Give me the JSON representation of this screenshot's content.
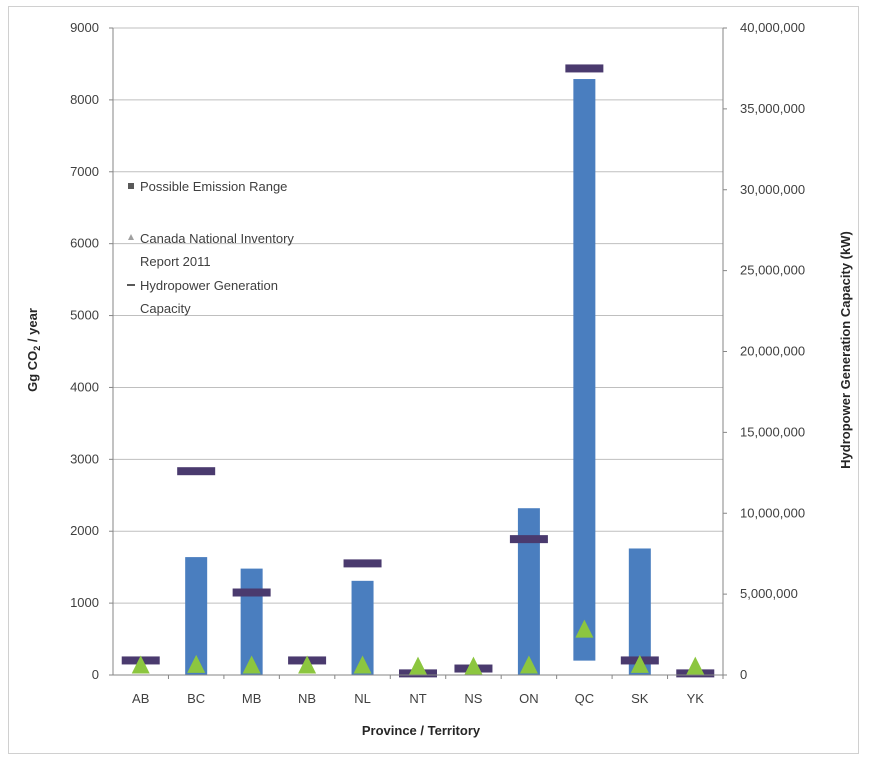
{
  "chart_data": {
    "type": "bar",
    "categories": [
      "AB",
      "BC",
      "MB",
      "NB",
      "NL",
      "NT",
      "NS",
      "ON",
      "QC",
      "SK",
      "YK"
    ],
    "xlabel": "Province / Territory",
    "ylabel_main": "Gg CO",
    "ylabel_sub": "2",
    "ylabel_tail": " / year",
    "y2label": "Hydropower Generation Capacity (kW)",
    "ylim": [
      0,
      9000
    ],
    "y_ticks": [
      0,
      1000,
      2000,
      3000,
      4000,
      5000,
      6000,
      7000,
      8000,
      9000
    ],
    "y_tick_labels": [
      "0",
      "1000",
      "2000",
      "3000",
      "4000",
      "5000",
      "6000",
      "7000",
      "8000",
      "9000"
    ],
    "y2lim": [
      0,
      40000000
    ],
    "y2_ticks": [
      0,
      5000000,
      10000000,
      15000000,
      20000000,
      25000000,
      30000000,
      35000000,
      40000000
    ],
    "y2_tick_labels": [
      "0",
      "5,000,000",
      "10,000,000",
      "15,000,000",
      "20,000,000",
      "25,000,000",
      "30,000,000",
      "35,000,000",
      "40,000,000"
    ],
    "grid": true,
    "legend_position": "left",
    "series": [
      {
        "name": "Possible Emission Range",
        "kind": "range",
        "color": "#4a7ebf",
        "low": [
          0,
          0,
          0,
          0,
          0,
          0,
          0,
          0,
          200,
          0,
          0
        ],
        "high": [
          0,
          1640,
          1480,
          0,
          1310,
          0,
          0,
          2320,
          8290,
          1760,
          0
        ]
      },
      {
        "name": "Canada National Inventory Report 2011",
        "kind": "marker",
        "color": "#8cc63f",
        "values": [
          20,
          30,
          20,
          20,
          20,
          5,
          5,
          20,
          520,
          30,
          5
        ]
      },
      {
        "name": "Hydropower Generation Capacity",
        "kind": "dash",
        "axis": "right",
        "color": "#4a3a6e",
        "values": [
          900000,
          12600000,
          5100000,
          900000,
          6900000,
          100000,
          400000,
          8400000,
          37500000,
          900000,
          100000
        ]
      }
    ],
    "legend_labels": {
      "range": "Possible Emission Range",
      "inventory_line1": "Canada National Inventory",
      "inventory_line2": "Report 2011",
      "hydro_line1": "Hydropower Generation",
      "hydro_line2": "Capacity"
    }
  }
}
